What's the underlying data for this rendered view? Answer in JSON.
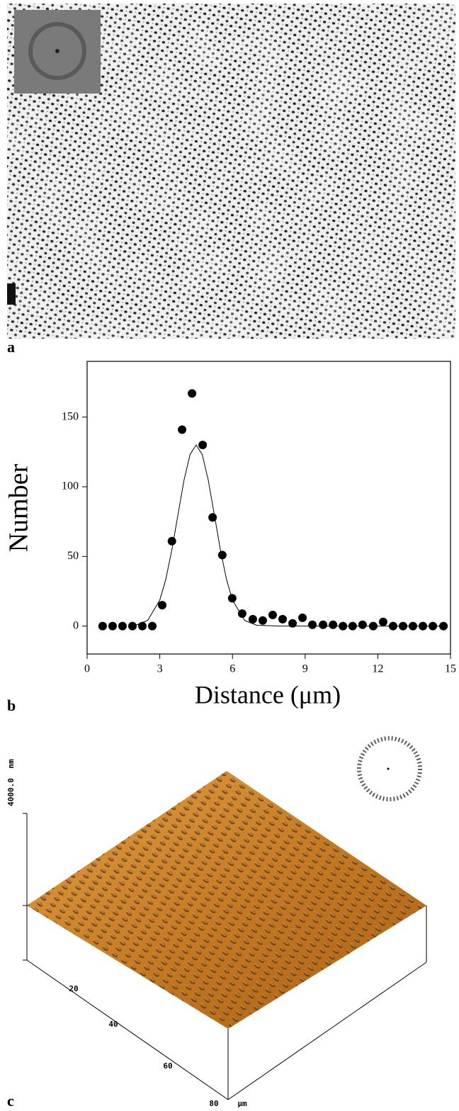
{
  "panel_labels": [
    "a",
    "b",
    "c"
  ],
  "chart_data": {
    "type": "scatter",
    "x_label": "Distance (μm)",
    "y_label": "Number",
    "xlim": [
      0,
      15
    ],
    "xticks": [
      0,
      3,
      6,
      9,
      12,
      15
    ],
    "ylim": [
      -20,
      190
    ],
    "yticks": [
      0,
      50,
      100,
      150
    ],
    "series": [
      {
        "type": "scatter",
        "color": "#000000",
        "x": [
          0.64,
          1.05,
          1.46,
          1.87,
          2.28,
          2.69,
          3.1,
          3.5,
          3.92,
          4.33,
          4.77,
          5.18,
          5.58,
          5.99,
          6.4,
          6.84,
          7.25,
          7.66,
          8.07,
          8.48,
          8.89,
          9.3,
          9.74,
          10.15,
          10.56,
          10.96,
          11.37,
          11.81,
          12.22,
          12.63,
          13.04,
          13.45,
          13.86,
          14.27,
          14.71
        ],
        "values": [
          0,
          0,
          0,
          0,
          0,
          0,
          15,
          61,
          141,
          167,
          130,
          78,
          51,
          20,
          9,
          5,
          4,
          8,
          5,
          2,
          6,
          1,
          1,
          1,
          0,
          0,
          1,
          0,
          3,
          0,
          0,
          0,
          0,
          0,
          0
        ]
      },
      {
        "type": "line",
        "color": "#000000",
        "x": [
          2.0,
          2.5,
          3.0,
          3.25,
          3.5,
          3.75,
          4.0,
          4.25,
          4.5,
          4.75,
          5.0,
          5.25,
          5.5,
          5.75,
          6.0,
          6.5,
          7.0,
          8.0,
          14.8
        ],
        "values": [
          0.6,
          4.1,
          18.7,
          33.8,
          54.9,
          80,
          104.8,
          123.2,
          130,
          123.2,
          104.8,
          80,
          54.9,
          33.8,
          18.7,
          4.1,
          0.6,
          0,
          0
        ]
      }
    ]
  },
  "afm": {
    "z_tick": "4000.0",
    "z_unit": "nm",
    "x_ticks": [
      "20",
      "40",
      "60",
      "80"
    ],
    "x_unit": "μm"
  }
}
